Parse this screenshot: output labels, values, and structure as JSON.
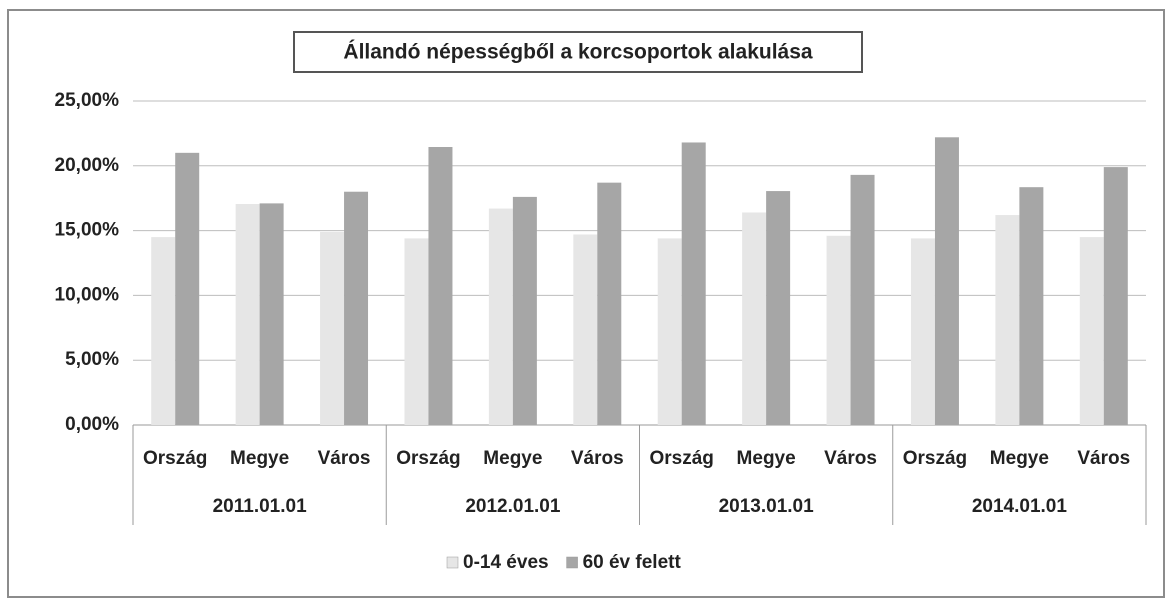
{
  "chart_data": {
    "type": "bar",
    "title": "Állandó népességből a korcsoportok alakulása",
    "categories": [
      "Ország",
      "Megye",
      "Város",
      "Ország",
      "Megye",
      "Város",
      "Ország",
      "Megye",
      "Város",
      "Ország",
      "Megye",
      "Város"
    ],
    "category_groups": [
      "2011.01.01",
      "2012.01.01",
      "2013.01.01",
      "2014.01.01"
    ],
    "series": [
      {
        "name": "0-14 éves",
        "color": "#e6e6e6",
        "values": [
          14.5,
          17.05,
          14.9,
          14.4,
          16.7,
          14.7,
          14.4,
          16.4,
          14.6,
          14.4,
          16.2,
          14.5
        ]
      },
      {
        "name": "60 év felett",
        "color": "#a6a6a6",
        "values": [
          21.0,
          17.1,
          18.0,
          21.45,
          17.6,
          18.7,
          21.8,
          18.05,
          19.3,
          22.2,
          18.35,
          19.9
        ]
      }
    ],
    "ylim": [
      0,
      25
    ],
    "yticks": [
      {
        "value": 0,
        "label": "0,00%"
      },
      {
        "value": 5,
        "label": "5,00%"
      },
      {
        "value": 10,
        "label": "10,00%"
      },
      {
        "value": 15,
        "label": "15,00%"
      },
      {
        "value": 20,
        "label": "20,00%"
      },
      {
        "value": 25,
        "label": "25,00%"
      }
    ],
    "grid": true,
    "legend": "bottom"
  }
}
